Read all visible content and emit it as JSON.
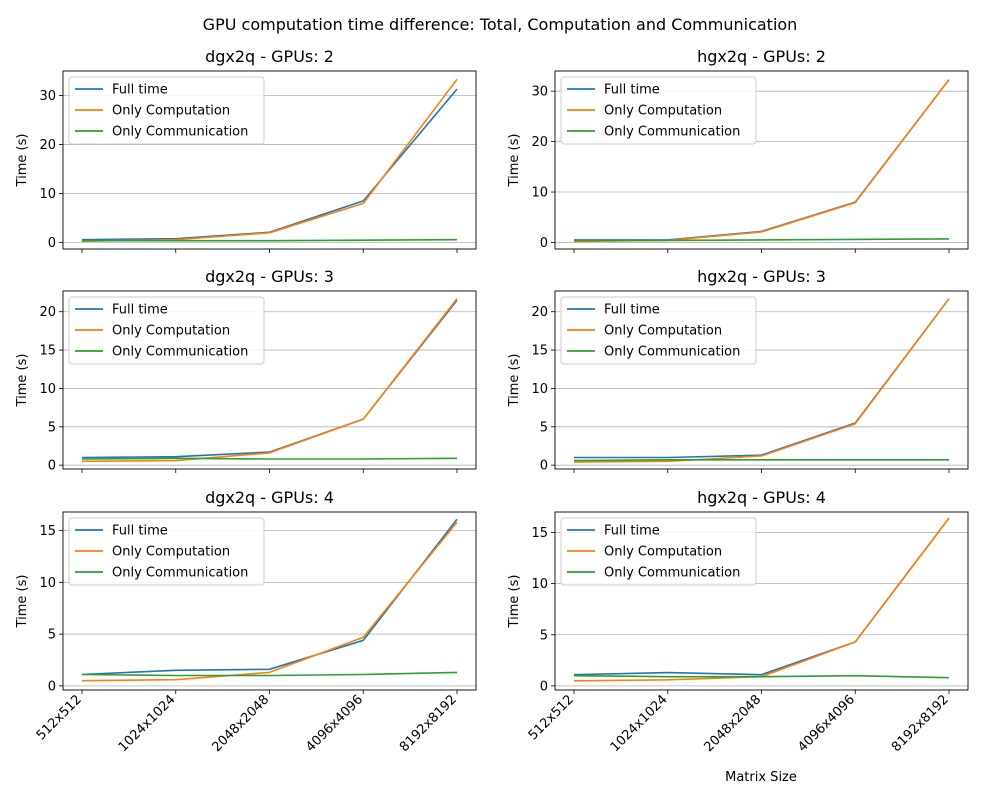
{
  "figure": {
    "suptitle": "GPU computation time difference: Total, Computation and Communication",
    "shared_xlabel": "Matrix Size"
  },
  "legend_entries": [
    "Full time",
    "Only Computation",
    "Only Communication"
  ],
  "colors": {
    "full": "#1f77b4",
    "comp": "#ff7f0e",
    "comm": "#2ca02c",
    "grid": "#b0b0b0"
  },
  "chart_data": [
    {
      "type": "line",
      "title": "dgx2q - GPUs: 2",
      "xlabel": "",
      "ylabel": "Time (s)",
      "categories": [
        "512x512",
        "1024x1024",
        "2048x2048",
        "4096x4096",
        "8192x8192"
      ],
      "ylim": [
        -1.3,
        35
      ],
      "yticks": [
        0,
        10,
        20,
        30
      ],
      "grid": "y",
      "legend": "upper left",
      "series": [
        {
          "name": "Full time",
          "values": [
            0.6,
            0.8,
            2.1,
            8.5,
            31.3
          ]
        },
        {
          "name": "Only Computation",
          "values": [
            0.3,
            0.6,
            2.0,
            8.0,
            33.3
          ]
        },
        {
          "name": "Only Communication",
          "values": [
            0.4,
            0.4,
            0.4,
            0.5,
            0.6
          ]
        }
      ]
    },
    {
      "type": "line",
      "title": "hgx2q - GPUs: 2",
      "xlabel": "",
      "ylabel": "Time (s)",
      "categories": [
        "512x512",
        "1024x1024",
        "2048x2048",
        "4096x4096",
        "8192x8192"
      ],
      "ylim": [
        -1.3,
        34
      ],
      "yticks": [
        0,
        10,
        20,
        30
      ],
      "grid": "y",
      "legend": "upper left",
      "series": [
        {
          "name": "Full time",
          "values": [
            0.5,
            0.5,
            2.2,
            8.0,
            32.3
          ]
        },
        {
          "name": "Only Computation",
          "values": [
            0.2,
            0.4,
            2.1,
            7.9,
            32.3
          ]
        },
        {
          "name": "Only Communication",
          "values": [
            0.4,
            0.4,
            0.5,
            0.6,
            0.7
          ]
        }
      ]
    },
    {
      "type": "line",
      "title": "dgx2q - GPUs: 3",
      "xlabel": "",
      "ylabel": "Time (s)",
      "categories": [
        "512x512",
        "1024x1024",
        "2048x2048",
        "4096x4096",
        "8192x8192"
      ],
      "ylim": [
        -0.5,
        22.7
      ],
      "yticks": [
        0,
        5,
        10,
        15,
        20
      ],
      "grid": "y",
      "legend": "upper left",
      "series": [
        {
          "name": "Full time",
          "values": [
            1.0,
            1.1,
            1.7,
            6.0,
            21.5
          ]
        },
        {
          "name": "Only Computation",
          "values": [
            0.5,
            0.6,
            1.6,
            6.0,
            21.7
          ]
        },
        {
          "name": "Only Communication",
          "values": [
            0.8,
            0.9,
            0.8,
            0.8,
            0.9
          ]
        }
      ]
    },
    {
      "type": "line",
      "title": "hgx2q - GPUs: 3",
      "xlabel": "",
      "ylabel": "Time (s)",
      "categories": [
        "512x512",
        "1024x1024",
        "2048x2048",
        "4096x4096",
        "8192x8192"
      ],
      "ylim": [
        -0.5,
        22.7
      ],
      "yticks": [
        0,
        5,
        10,
        15,
        20
      ],
      "grid": "y",
      "legend": "upper left",
      "series": [
        {
          "name": "Full time",
          "values": [
            1.0,
            1.0,
            1.3,
            5.5,
            21.7
          ]
        },
        {
          "name": "Only Computation",
          "values": [
            0.4,
            0.5,
            1.2,
            5.4,
            21.7
          ]
        },
        {
          "name": "Only Communication",
          "values": [
            0.6,
            0.7,
            0.7,
            0.7,
            0.7
          ]
        }
      ]
    },
    {
      "type": "line",
      "title": "dgx2q - GPUs: 4",
      "xlabel": "",
      "ylabel": "Time (s)",
      "categories": [
        "512x512",
        "1024x1024",
        "2048x2048",
        "4096x4096",
        "8192x8192"
      ],
      "ylim": [
        -0.4,
        16.8
      ],
      "yticks": [
        0,
        5,
        10,
        15
      ],
      "grid": "y",
      "legend": "upper left",
      "series": [
        {
          "name": "Full time",
          "values": [
            1.1,
            1.5,
            1.6,
            4.4,
            16.1
          ]
        },
        {
          "name": "Only Computation",
          "values": [
            0.5,
            0.6,
            1.3,
            4.7,
            15.8
          ]
        },
        {
          "name": "Only Communication",
          "values": [
            1.1,
            1.0,
            1.0,
            1.1,
            1.3
          ]
        }
      ]
    },
    {
      "type": "line",
      "title": "hgx2q - GPUs: 4",
      "xlabel": "Matrix Size",
      "ylabel": "Time (s)",
      "categories": [
        "512x512",
        "1024x1024",
        "2048x2048",
        "4096x4096",
        "8192x8192"
      ],
      "ylim": [
        -0.4,
        17
      ],
      "yticks": [
        0,
        5,
        10,
        15
      ],
      "grid": "y",
      "legend": "upper left",
      "series": [
        {
          "name": "Full time",
          "values": [
            1.1,
            1.3,
            1.1,
            4.3,
            16.4
          ]
        },
        {
          "name": "Only Computation",
          "values": [
            0.5,
            0.6,
            0.9,
            4.3,
            16.4
          ]
        },
        {
          "name": "Only Communication",
          "values": [
            1.0,
            0.9,
            0.9,
            1.0,
            0.8
          ]
        }
      ]
    }
  ]
}
